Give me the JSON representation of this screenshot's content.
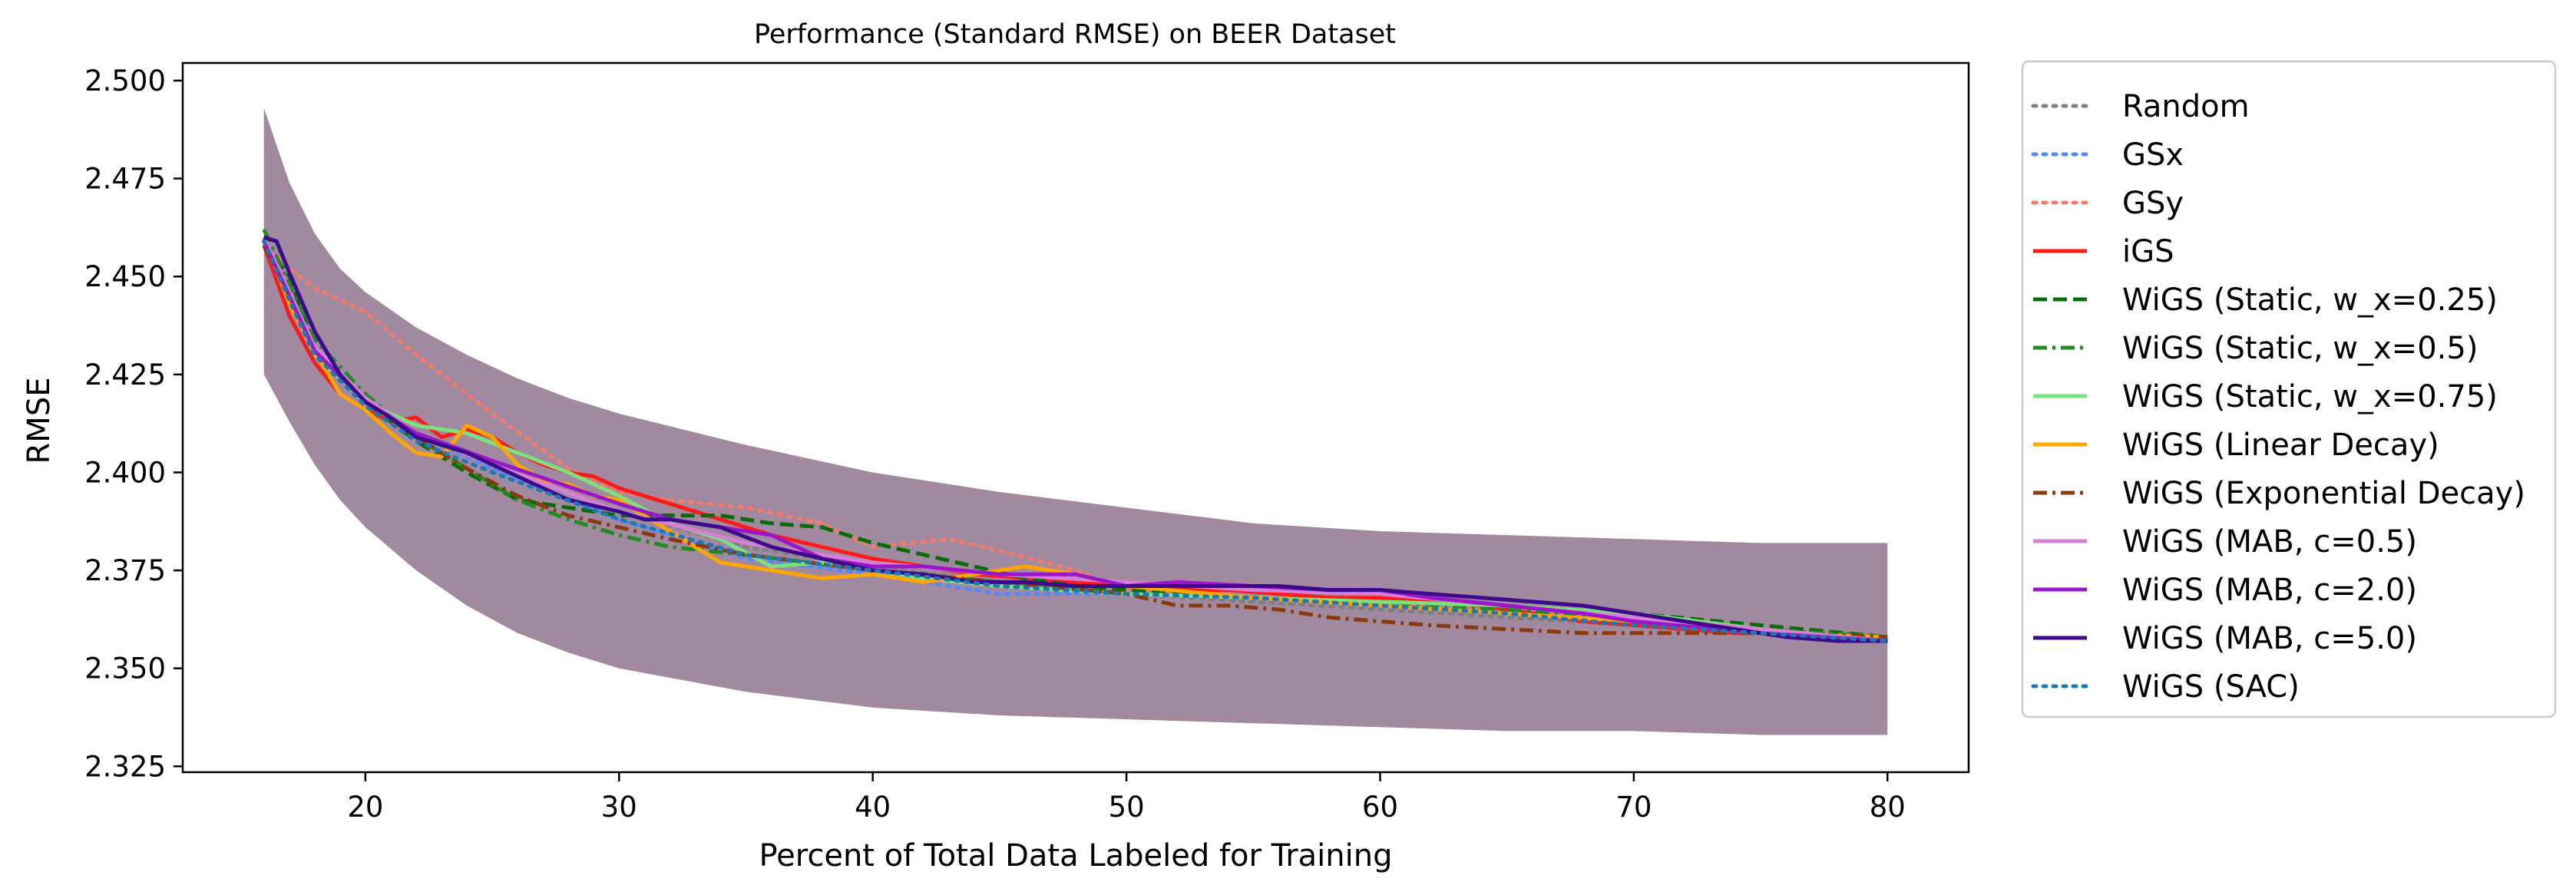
{
  "chart_data": {
    "type": "line",
    "title": "Performance (Standard RMSE) on BEER Dataset",
    "xlabel": "Percent of Total Data Labeled for Training",
    "ylabel": "RMSE",
    "xlim": [
      12.8,
      83.2
    ],
    "ylim": [
      2.3235,
      2.5045
    ],
    "xticks": [
      20,
      30,
      40,
      50,
      60,
      70,
      80
    ],
    "yticks": [
      2.325,
      2.35,
      2.375,
      2.4,
      2.425,
      2.45,
      2.475,
      2.5
    ],
    "ytick_labels": [
      "2.325",
      "2.350",
      "2.375",
      "2.400",
      "2.425",
      "2.450",
      "2.475",
      "2.500"
    ],
    "grid": false,
    "legend_position": "outside-right",
    "band": {
      "color": "#8a6d88",
      "x": [
        16,
        17,
        18,
        19,
        20,
        22,
        24,
        26,
        28,
        30,
        35,
        40,
        45,
        50,
        55,
        60,
        65,
        70,
        75,
        80
      ],
      "upper": [
        2.493,
        2.474,
        2.461,
        2.452,
        2.446,
        2.437,
        2.43,
        2.424,
        2.419,
        2.415,
        2.407,
        2.4,
        2.395,
        2.391,
        2.387,
        2.385,
        2.384,
        2.383,
        2.382,
        2.382
      ],
      "lower": [
        2.425,
        2.413,
        2.402,
        2.393,
        2.386,
        2.375,
        2.366,
        2.359,
        2.354,
        2.35,
        2.344,
        2.34,
        2.338,
        2.337,
        2.336,
        2.335,
        2.334,
        2.334,
        2.333,
        2.333
      ]
    },
    "series": [
      {
        "name": "Random",
        "color": "#7f7f7f",
        "dash": "dotted",
        "x": [
          16,
          17,
          18,
          20,
          22,
          25,
          30,
          35,
          40,
          45,
          50,
          55,
          60,
          65,
          70,
          75,
          80
        ],
        "y": [
          2.459,
          2.445,
          2.432,
          2.419,
          2.41,
          2.402,
          2.39,
          2.381,
          2.376,
          2.372,
          2.369,
          2.367,
          2.365,
          2.363,
          2.361,
          2.359,
          2.358
        ]
      },
      {
        "name": "GSx",
        "color": "#4f88ff",
        "dash": "dotted",
        "x": [
          16,
          17,
          18,
          20,
          22,
          25,
          30,
          35,
          40,
          45,
          50,
          55,
          60,
          65,
          70,
          75,
          80
        ],
        "y": [
          2.459,
          2.444,
          2.431,
          2.418,
          2.41,
          2.401,
          2.388,
          2.378,
          2.374,
          2.369,
          2.369,
          2.368,
          2.366,
          2.364,
          2.361,
          2.359,
          2.357
        ]
      },
      {
        "name": "GSy",
        "color": "#f47b6b",
        "dash": "dotted",
        "x": [
          16,
          17,
          18,
          20,
          22,
          25,
          28,
          30,
          32,
          35,
          38,
          40,
          43,
          45,
          48,
          50,
          55,
          60,
          65,
          70,
          75,
          80
        ],
        "y": [
          2.459,
          2.452,
          2.447,
          2.441,
          2.43,
          2.415,
          2.401,
          2.395,
          2.393,
          2.391,
          2.387,
          2.381,
          2.383,
          2.38,
          2.375,
          2.37,
          2.368,
          2.366,
          2.365,
          2.362,
          2.36,
          2.358
        ]
      },
      {
        "name": "iGS",
        "color": "#ff1a1a",
        "dash": "solid",
        "x": [
          16,
          17,
          18,
          19,
          20,
          21,
          22,
          23,
          24,
          25,
          26,
          27,
          28,
          29,
          30,
          32,
          34,
          36,
          38,
          40,
          42,
          44,
          46,
          48,
          50,
          52,
          54,
          56,
          58,
          60,
          62,
          64,
          66,
          68,
          70,
          72,
          74,
          76,
          78,
          80
        ],
        "y": [
          2.458,
          2.44,
          2.428,
          2.42,
          2.416,
          2.413,
          2.414,
          2.409,
          2.411,
          2.409,
          2.405,
          2.402,
          2.4,
          2.399,
          2.396,
          2.392,
          2.388,
          2.384,
          2.381,
          2.378,
          2.376,
          2.374,
          2.373,
          2.372,
          2.371,
          2.37,
          2.37,
          2.369,
          2.368,
          2.368,
          2.367,
          2.366,
          2.364,
          2.362,
          2.361,
          2.36,
          2.359,
          2.359,
          2.358,
          2.358
        ]
      },
      {
        "name": "WiGS (Static, w_x=0.25)",
        "color": "#0a6b0a",
        "dash": "dashed",
        "x": [
          16,
          17,
          18,
          20,
          22,
          24,
          26,
          28,
          30,
          32,
          34,
          36,
          38,
          40,
          42,
          44,
          46,
          48,
          50,
          55,
          60,
          65,
          70,
          75,
          80
        ],
        "y": [
          2.459,
          2.45,
          2.432,
          2.418,
          2.408,
          2.4,
          2.393,
          2.391,
          2.389,
          2.389,
          2.389,
          2.387,
          2.386,
          2.382,
          2.379,
          2.376,
          2.373,
          2.371,
          2.37,
          2.368,
          2.367,
          2.366,
          2.364,
          2.361,
          2.358
        ]
      },
      {
        "name": "WiGS (Static, w_x=0.5)",
        "color": "#228b22",
        "dash": "dashdot",
        "x": [
          16,
          17,
          18,
          20,
          22,
          24,
          26,
          28,
          30,
          32,
          35,
          40,
          45,
          50,
          55,
          60,
          65,
          70,
          75,
          80
        ],
        "y": [
          2.462,
          2.448,
          2.434,
          2.42,
          2.409,
          2.401,
          2.393,
          2.388,
          2.384,
          2.381,
          2.379,
          2.375,
          2.372,
          2.369,
          2.368,
          2.366,
          2.365,
          2.363,
          2.36,
          2.358
        ]
      },
      {
        "name": "WiGS (Static, w_x=0.75)",
        "color": "#7ce07c",
        "dash": "solid",
        "x": [
          16,
          17,
          18,
          20,
          22,
          24,
          26,
          28,
          30,
          32,
          34,
          36,
          38,
          40,
          42,
          45,
          50,
          55,
          60,
          65,
          70,
          75,
          80
        ],
        "y": [
          2.459,
          2.445,
          2.43,
          2.418,
          2.412,
          2.41,
          2.405,
          2.4,
          2.394,
          2.387,
          2.383,
          2.376,
          2.377,
          2.375,
          2.373,
          2.371,
          2.369,
          2.368,
          2.367,
          2.366,
          2.364,
          2.36,
          2.357
        ]
      },
      {
        "name": "WiGS (Linear Decay)",
        "color": "#ffa500",
        "dash": "solid",
        "x": [
          16,
          17,
          18,
          19,
          20,
          21,
          22,
          23,
          24,
          25,
          26,
          27,
          28,
          29,
          30,
          32,
          34,
          36,
          38,
          40,
          42,
          44,
          46,
          48,
          50,
          55,
          60,
          65,
          70,
          75,
          80
        ],
        "y": [
          2.46,
          2.443,
          2.431,
          2.42,
          2.416,
          2.41,
          2.405,
          2.404,
          2.412,
          2.409,
          2.402,
          2.398,
          2.397,
          2.394,
          2.393,
          2.385,
          2.377,
          2.375,
          2.373,
          2.374,
          2.372,
          2.374,
          2.376,
          2.374,
          2.371,
          2.368,
          2.366,
          2.364,
          2.362,
          2.359,
          2.358
        ]
      },
      {
        "name": "WiGS (Exponential Decay)",
        "color": "#8b3a0f",
        "dash": "dashdot",
        "x": [
          16,
          17,
          18,
          20,
          22,
          24,
          26,
          28,
          30,
          32,
          35,
          40,
          45,
          50,
          52,
          54,
          56,
          58,
          60,
          62,
          65,
          68,
          70,
          75,
          80
        ],
        "y": [
          2.458,
          2.445,
          2.432,
          2.418,
          2.409,
          2.401,
          2.394,
          2.389,
          2.386,
          2.383,
          2.379,
          2.375,
          2.372,
          2.369,
          2.366,
          2.366,
          2.365,
          2.363,
          2.362,
          2.361,
          2.36,
          2.359,
          2.359,
          2.359,
          2.358
        ]
      },
      {
        "name": "WiGS (MAB, c=0.5)",
        "color": "#d580d5",
        "dash": "solid",
        "x": [
          16,
          17,
          18,
          20,
          22,
          25,
          30,
          35,
          40,
          45,
          50,
          55,
          60,
          65,
          70,
          75,
          80
        ],
        "y": [
          2.46,
          2.446,
          2.432,
          2.419,
          2.41,
          2.402,
          2.39,
          2.382,
          2.377,
          2.374,
          2.372,
          2.37,
          2.369,
          2.366,
          2.363,
          2.36,
          2.357
        ]
      },
      {
        "name": "WiGS (MAB, c=2.0)",
        "color": "#9a17c9",
        "dash": "solid",
        "x": [
          16,
          17,
          18,
          20,
          22,
          25,
          30,
          32,
          34,
          36,
          38,
          40,
          42,
          45,
          48,
          50,
          52,
          55,
          58,
          60,
          62,
          65,
          68,
          70,
          75,
          80
        ],
        "y": [
          2.459,
          2.445,
          2.431,
          2.418,
          2.41,
          2.403,
          2.392,
          2.388,
          2.386,
          2.384,
          2.378,
          2.376,
          2.376,
          2.374,
          2.374,
          2.371,
          2.372,
          2.371,
          2.37,
          2.37,
          2.368,
          2.366,
          2.364,
          2.362,
          2.359,
          2.357
        ]
      },
      {
        "name": "WiGS (MAB, c=5.0)",
        "color": "#3d0a8c",
        "dash": "solid",
        "x": [
          16,
          16.5,
          17,
          18,
          19,
          20,
          21,
          22,
          24,
          26,
          28,
          30,
          31,
          32,
          34,
          36,
          38,
          40,
          42,
          44,
          46,
          48,
          50,
          52,
          54,
          56,
          58,
          60,
          62,
          64,
          66,
          68,
          70,
          72,
          74,
          76,
          78,
          80
        ],
        "y": [
          2.46,
          2.459,
          2.451,
          2.436,
          2.425,
          2.418,
          2.414,
          2.409,
          2.405,
          2.399,
          2.393,
          2.39,
          2.388,
          2.388,
          2.386,
          2.381,
          2.378,
          2.375,
          2.374,
          2.372,
          2.372,
          2.371,
          2.371,
          2.371,
          2.371,
          2.371,
          2.37,
          2.37,
          2.369,
          2.368,
          2.367,
          2.366,
          2.364,
          2.362,
          2.36,
          2.358,
          2.357,
          2.357
        ]
      },
      {
        "name": "WiGS (SAC)",
        "color": "#1f77b4",
        "dash": "dotted",
        "x": [
          16,
          17,
          18,
          20,
          22,
          25,
          30,
          35,
          40,
          45,
          50,
          55,
          60,
          65,
          70,
          75,
          80
        ],
        "y": [
          2.459,
          2.444,
          2.43,
          2.417,
          2.408,
          2.4,
          2.388,
          2.379,
          2.375,
          2.371,
          2.369,
          2.368,
          2.366,
          2.364,
          2.361,
          2.359,
          2.357
        ]
      }
    ]
  }
}
